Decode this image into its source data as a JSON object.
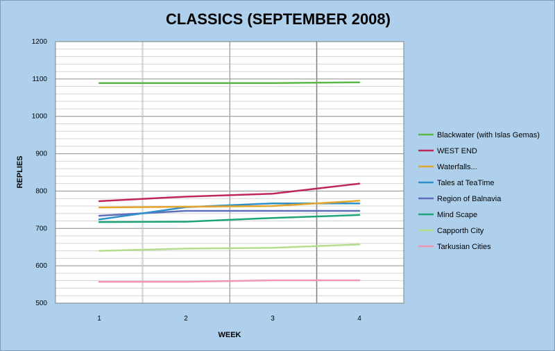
{
  "chart_data": {
    "type": "line",
    "title": "CLASSICS (SEPTEMBER 2008)",
    "xlabel": "WEEK",
    "ylabel": "REPLIES",
    "x": [
      1,
      2,
      3,
      4
    ],
    "x_tick_labels": [
      "1",
      "2",
      "3",
      "4"
    ],
    "ylim": [
      500,
      1200
    ],
    "y_ticks": [
      500,
      600,
      700,
      800,
      900,
      1000,
      1100,
      1200
    ],
    "grid": true,
    "legend_position": "right",
    "series": [
      {
        "name": "Blackwater (with Islas  Gemas)",
        "color": "#5ab946",
        "values": [
          1089,
          1089,
          1089,
          1091
        ]
      },
      {
        "name": "WEST END",
        "color": "#c0265a",
        "values": [
          773,
          785,
          793,
          820
        ]
      },
      {
        "name": "Waterfalls...",
        "color": "#e4a52c",
        "values": [
          756,
          758,
          760,
          774
        ]
      },
      {
        "name": "Tales at TeaTime",
        "color": "#2f8fc8",
        "values": [
          724,
          757,
          767,
          767
        ]
      },
      {
        "name": "Region of Balnavia",
        "color": "#5d6fb8",
        "values": [
          734,
          747,
          747,
          747
        ]
      },
      {
        "name": "Mind Scape",
        "color": "#1ea37a",
        "values": [
          717,
          718,
          728,
          736
        ]
      },
      {
        "name": "Capporth City",
        "color": "#b5dc8c",
        "values": [
          640,
          646,
          648,
          657
        ]
      },
      {
        "name": "Tarkusian Cities",
        "color": "#ee97b3",
        "values": [
          557,
          557,
          561,
          561
        ]
      }
    ]
  }
}
